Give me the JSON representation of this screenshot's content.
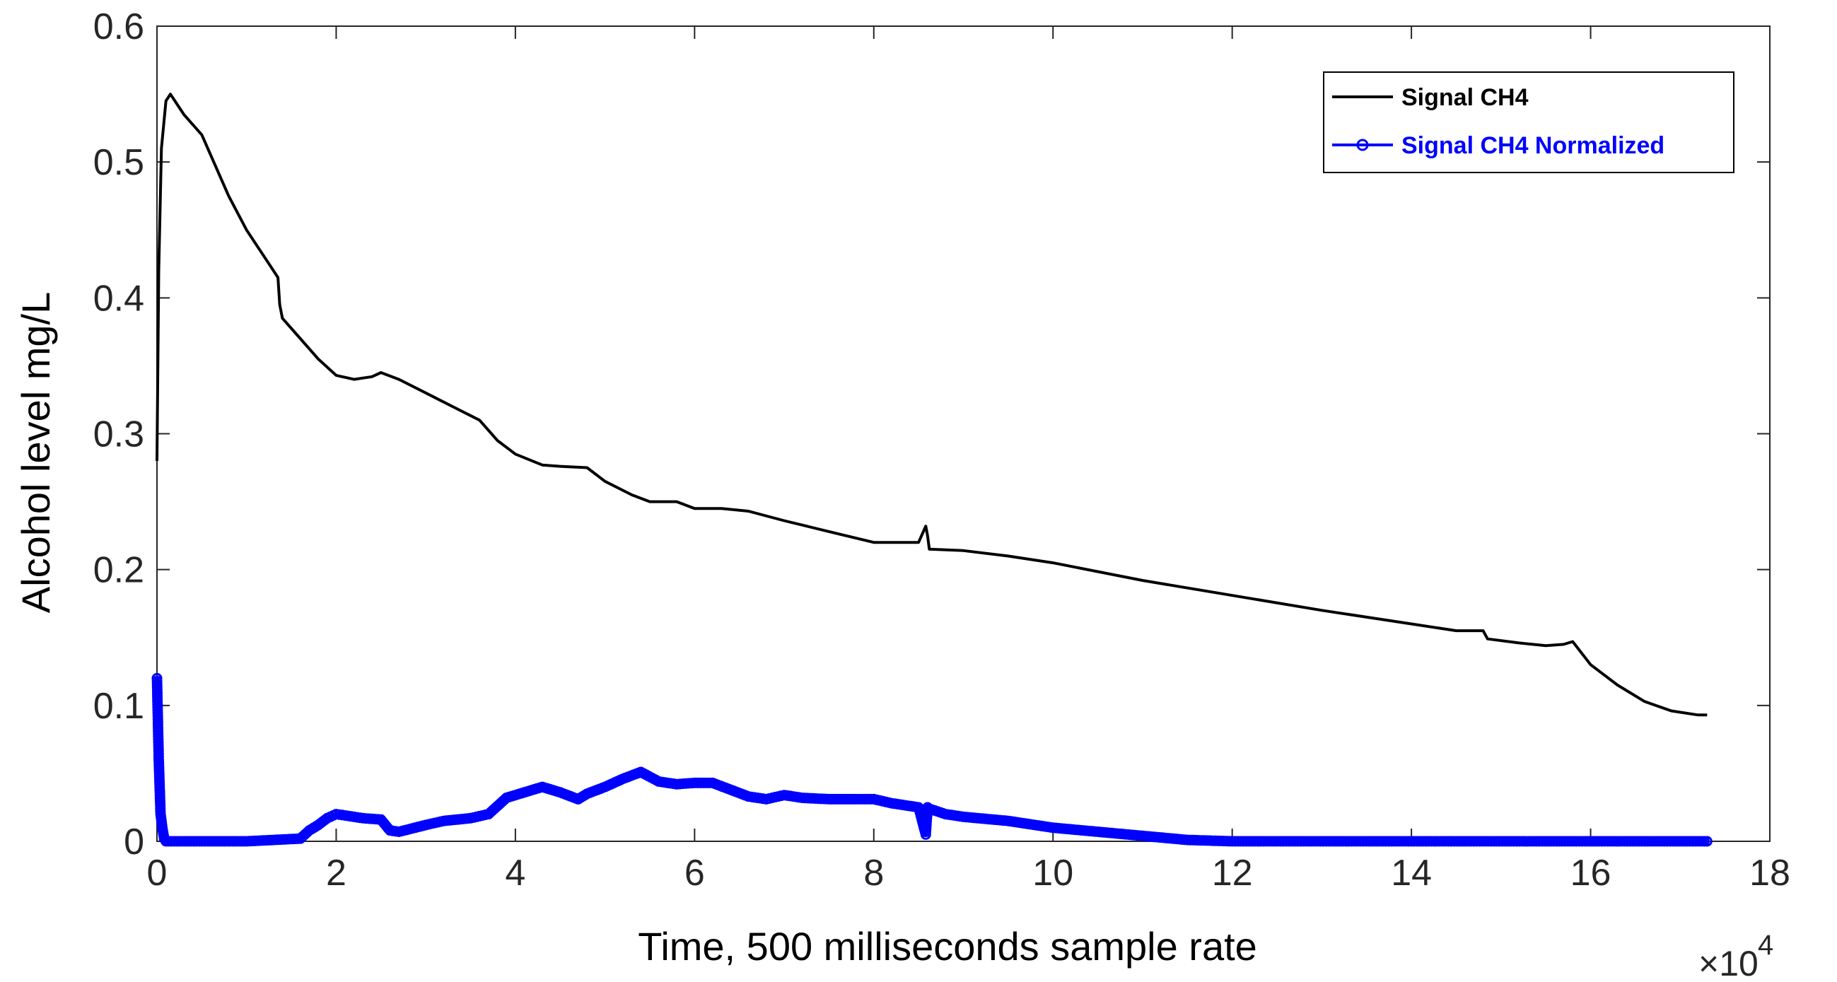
{
  "chart_data": {
    "type": "line",
    "title": "",
    "xlabel": "Time, 500  milliseconds sample rate",
    "ylabel": "Alcohol level   mg/L",
    "x_multiplier_label": "×10",
    "x_multiplier_exponent": "4",
    "xlim": [
      0,
      18
    ],
    "ylim": [
      0,
      0.6
    ],
    "xticks": [
      0,
      2,
      4,
      6,
      8,
      10,
      12,
      14,
      16,
      18
    ],
    "yticks": [
      0,
      0.1,
      0.2,
      0.3,
      0.4,
      0.5,
      0.6
    ],
    "xtick_labels": [
      "0",
      "2",
      "4",
      "6",
      "8",
      "10",
      "12",
      "14",
      "16",
      "18"
    ],
    "ytick_labels": [
      "0",
      "0.1",
      "0.2",
      "0.3",
      "0.4",
      "0.5",
      "0.6"
    ],
    "legend_position": "top-right",
    "series": [
      {
        "name": "Signal CH4",
        "color": "#000000",
        "marker": "none",
        "x": [
          0,
          0.02,
          0.05,
          0.1,
          0.15,
          0.3,
          0.5,
          0.8,
          1.0,
          1.2,
          1.35,
          1.37,
          1.4,
          1.6,
          1.8,
          2.0,
          2.2,
          2.4,
          2.5,
          2.7,
          3.0,
          3.3,
          3.6,
          3.8,
          4.0,
          4.3,
          4.5,
          4.8,
          5.0,
          5.3,
          5.5,
          5.8,
          6.0,
          6.3,
          6.6,
          7.0,
          7.5,
          8.0,
          8.5,
          8.58,
          8.6,
          8.62,
          9.0,
          9.5,
          10.0,
          11.0,
          12.0,
          13.0,
          14.0,
          14.5,
          14.8,
          14.85,
          15.2,
          15.5,
          15.7,
          15.8,
          16.0,
          16.3,
          16.6,
          16.9,
          17.2,
          17.3
        ],
        "values": [
          0.28,
          0.42,
          0.51,
          0.545,
          0.55,
          0.535,
          0.52,
          0.475,
          0.45,
          0.43,
          0.415,
          0.395,
          0.385,
          0.37,
          0.355,
          0.343,
          0.34,
          0.342,
          0.345,
          0.34,
          0.33,
          0.32,
          0.31,
          0.295,
          0.285,
          0.277,
          0.276,
          0.275,
          0.265,
          0.255,
          0.25,
          0.25,
          0.245,
          0.245,
          0.243,
          0.236,
          0.228,
          0.22,
          0.22,
          0.232,
          0.225,
          0.215,
          0.214,
          0.21,
          0.205,
          0.192,
          0.181,
          0.17,
          0.16,
          0.155,
          0.155,
          0.149,
          0.146,
          0.144,
          0.145,
          0.147,
          0.13,
          0.115,
          0.103,
          0.096,
          0.093,
          0.093
        ]
      },
      {
        "name": "Signal CH4 Normalized",
        "color": "#0000ff",
        "marker": "circle",
        "x": [
          0,
          0.01,
          0.02,
          0.03,
          0.04,
          0.06,
          0.08,
          0.1,
          1.0,
          1.6,
          1.7,
          1.8,
          1.9,
          2.0,
          2.1,
          2.2,
          2.3,
          2.5,
          2.6,
          2.7,
          3.0,
          3.2,
          3.5,
          3.7,
          3.9,
          4.1,
          4.3,
          4.5,
          4.7,
          4.8,
          5.0,
          5.2,
          5.4,
          5.6,
          5.8,
          6.0,
          6.2,
          6.4,
          6.6,
          6.8,
          7.0,
          7.2,
          7.5,
          7.8,
          8.0,
          8.2,
          8.5,
          8.58,
          8.6,
          8.62,
          8.8,
          9.0,
          9.5,
          10.0,
          10.5,
          11.0,
          11.5,
          12.0,
          14.0,
          16.0,
          17.3
        ],
        "values": [
          0.12,
          0.09,
          0.06,
          0.04,
          0.02,
          0.01,
          0.002,
          0,
          0,
          0.002,
          0.008,
          0.012,
          0.017,
          0.02,
          0.019,
          0.018,
          0.017,
          0.016,
          0.008,
          0.007,
          0.012,
          0.015,
          0.017,
          0.02,
          0.032,
          0.036,
          0.04,
          0.036,
          0.031,
          0.035,
          0.04,
          0.046,
          0.051,
          0.044,
          0.042,
          0.043,
          0.043,
          0.038,
          0.033,
          0.031,
          0.034,
          0.032,
          0.031,
          0.031,
          0.031,
          0.028,
          0.025,
          0.005,
          0.025,
          0.024,
          0.02,
          0.018,
          0.015,
          0.01,
          0.007,
          0.004,
          0.001,
          0,
          0,
          0,
          0
        ]
      }
    ]
  }
}
